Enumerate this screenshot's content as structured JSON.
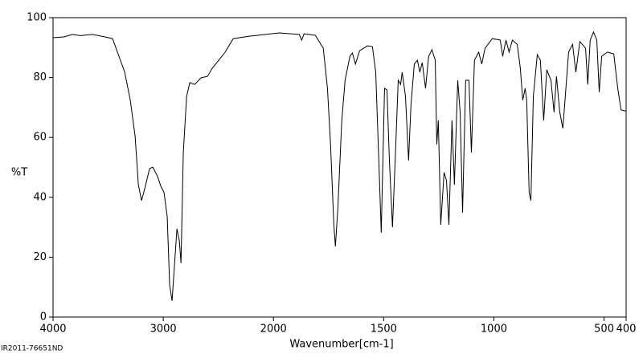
{
  "chart_data": {
    "type": "line",
    "xlabel": "Wavenumber[cm-1]",
    "ylabel": "%T",
    "footer": "IR2011-76651ND",
    "x": [
      4000,
      3898,
      3825,
      3752,
      3642,
      3533,
      3460,
      3401,
      3350,
      3299,
      3255,
      3226,
      3197,
      3168,
      3124,
      3095,
      3051,
      3022,
      2993,
      2964,
      2942,
      2920,
      2898,
      2876,
      2854,
      2839,
      2818,
      2788,
      2759,
      2715,
      2657,
      2599,
      2555,
      2496,
      2438,
      2365,
      2219,
      2073,
      1974,
      1920,
      1883,
      1872,
      1861,
      1810,
      1774,
      1755,
      1741,
      1726,
      1719,
      1708,
      1690,
      1675,
      1653,
      1642,
      1628,
      1609,
      1573,
      1551,
      1536,
      1522,
      1511,
      1496,
      1485,
      1474,
      1460,
      1445,
      1434,
      1423,
      1416,
      1401,
      1387,
      1376,
      1361,
      1347,
      1336,
      1325,
      1310,
      1296,
      1281,
      1266,
      1259,
      1252,
      1241,
      1226,
      1215,
      1204,
      1190,
      1179,
      1164,
      1153,
      1142,
      1128,
      1113,
      1102,
      1088,
      1069,
      1055,
      1040,
      1007,
      971,
      960,
      945,
      931,
      916,
      894,
      880,
      869,
      858,
      851,
      840,
      832,
      821,
      803,
      789,
      774,
      760,
      741,
      727,
      716,
      701,
      687,
      676,
      661,
      643,
      628,
      610,
      584,
      574,
      563,
      548,
      533,
      522,
      511,
      485,
      456,
      438,
      423,
      400
    ],
    "y": [
      93.3,
      93.6,
      94.4,
      94,
      94.4,
      93.6,
      93,
      87,
      81.8,
      72.4,
      60.3,
      44.2,
      38.9,
      42.9,
      49.6,
      50.1,
      46.9,
      43.7,
      41.6,
      33.5,
      10.7,
      5.4,
      17.4,
      29.5,
      25.5,
      18,
      55,
      73.7,
      78.3,
      77.7,
      79.9,
      80.4,
      83.1,
      85.8,
      88.5,
      93,
      93.8,
      94.4,
      94.9,
      94.6,
      94.4,
      92.5,
      94.6,
      94.1,
      89.8,
      76.4,
      57.6,
      30.8,
      23.6,
      36.2,
      65.7,
      79.1,
      87.1,
      88.2,
      84.5,
      89,
      90.6,
      90.3,
      81.8,
      52.3,
      28.2,
      76.4,
      75.9,
      52.3,
      30,
      57.6,
      79.1,
      77.7,
      81.8,
      73.7,
      52.3,
      71,
      84.5,
      85.8,
      81.8,
      85,
      76.4,
      87.1,
      89.3,
      85.8,
      57.6,
      65.7,
      30.8,
      48.3,
      45.6,
      30.8,
      65.7,
      44.2,
      79.1,
      68.4,
      34.9,
      79.1,
      79.1,
      55,
      85.8,
      88.5,
      84.5,
      89.8,
      93,
      92.5,
      87.1,
      92.5,
      88.5,
      92.5,
      91.1,
      83.1,
      72.4,
      76.4,
      72.4,
      41.6,
      38.9,
      73.7,
      87.7,
      85.8,
      65.7,
      82.6,
      79.1,
      68.4,
      80.4,
      68.4,
      63,
      73.7,
      88.5,
      91.1,
      81.8,
      92,
      89.8,
      77.7,
      92.5,
      95.2,
      92.5,
      75.1,
      87.1,
      88.5,
      87.9,
      76.4,
      69.2,
      68.8
    ],
    "color": "#000000",
    "xlim": [
      4000,
      400
    ],
    "xticks": [
      4000,
      3000,
      2000,
      1500,
      1000,
      500,
      400
    ],
    "x_scale_change": 2000,
    "ylim": [
      0,
      100
    ],
    "yticks": [
      0,
      20,
      40,
      60,
      80,
      100
    ]
  }
}
